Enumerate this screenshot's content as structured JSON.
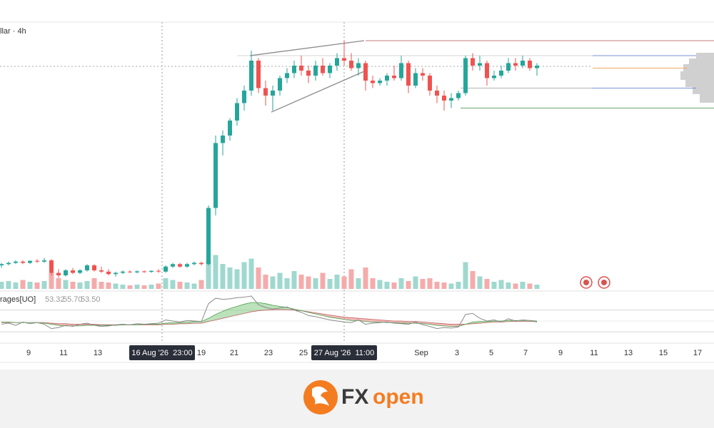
{
  "chart_data": {
    "type": "candlestick",
    "title": "llar · 4h",
    "xlim": [
      -0.2,
      99.8
    ],
    "ylim": [
      0,
      100
    ],
    "vlim": [
      0,
      100
    ],
    "colors": {
      "up": "#26a69a",
      "down": "#ef5350",
      "vol_up": "#9fd8cf",
      "vol_down": "#f5abab"
    },
    "candles": [
      [
        8,
        9,
        7,
        8.5
      ],
      [
        8.5,
        9.5,
        8,
        9
      ],
      [
        9,
        10,
        8.5,
        9.5
      ],
      [
        9.5,
        10,
        8.5,
        9
      ],
      [
        9,
        10,
        8.5,
        9.8
      ],
      [
        9.8,
        10.5,
        9,
        9.5
      ],
      [
        9.5,
        11,
        9,
        10
      ],
      [
        10,
        10.5,
        4,
        5
      ],
      [
        5,
        6.5,
        3,
        4
      ],
      [
        4,
        6.5,
        3.5,
        6
      ],
      [
        6,
        7,
        4.5,
        5
      ],
      [
        5,
        6.5,
        4.5,
        6
      ],
      [
        6,
        8.5,
        5.5,
        8
      ],
      [
        8,
        8.5,
        5.5,
        6
      ],
      [
        6,
        7.5,
        5,
        5.5
      ],
      [
        5.5,
        6.5,
        4,
        4.5
      ],
      [
        4.5,
        5.5,
        3.5,
        5
      ],
      [
        5,
        6,
        4.5,
        5.5
      ],
      [
        5.5,
        6,
        5,
        5.2
      ],
      [
        5.2,
        6,
        4.8,
        5.6
      ],
      [
        5.6,
        6,
        5,
        5.4
      ],
      [
        5.4,
        6,
        5,
        5.8
      ],
      [
        5.8,
        6.5,
        5,
        5.5
      ],
      [
        5.5,
        8,
        5,
        7.5
      ],
      [
        7.5,
        9,
        7,
        8.5
      ],
      [
        8.5,
        9,
        7,
        7.5
      ],
      [
        7.5,
        9,
        7,
        8.5
      ],
      [
        8.5,
        9.5,
        8,
        9
      ],
      [
        9,
        9.5,
        8,
        8.5
      ],
      [
        8.5,
        32,
        8,
        31
      ],
      [
        31,
        60,
        28,
        57
      ],
      [
        57,
        62,
        52,
        60
      ],
      [
        60,
        67,
        58,
        66
      ],
      [
        66,
        75,
        64,
        73
      ],
      [
        73,
        80,
        70,
        78
      ],
      [
        78,
        94,
        76,
        90
      ],
      [
        90,
        91,
        77,
        79
      ],
      [
        79,
        82,
        72,
        76
      ],
      [
        76,
        80,
        70,
        78
      ],
      [
        78,
        84,
        76,
        83
      ],
      [
        83,
        87,
        81,
        85
      ],
      [
        85,
        90,
        83,
        88
      ],
      [
        88,
        92,
        84,
        86
      ],
      [
        86,
        88,
        81,
        84
      ],
      [
        84,
        90,
        82,
        88
      ],
      [
        88,
        91,
        84,
        85
      ],
      [
        85,
        89,
        83,
        88
      ],
      [
        88,
        93,
        86,
        91
      ],
      [
        91,
        98,
        88,
        90
      ],
      [
        90,
        93,
        86,
        87
      ],
      [
        87,
        91,
        84,
        89
      ],
      [
        89,
        90,
        78,
        82
      ],
      [
        82,
        84,
        79,
        81
      ],
      [
        81,
        83,
        80,
        82
      ],
      [
        82,
        85,
        80,
        84
      ],
      [
        84,
        88,
        82,
        83
      ],
      [
        83,
        92,
        82,
        89
      ],
      [
        89,
        90,
        77,
        80
      ],
      [
        80,
        87,
        79,
        85
      ],
      [
        85,
        87,
        82,
        84
      ],
      [
        84,
        85,
        76,
        78
      ],
      [
        78,
        80,
        73,
        76
      ],
      [
        76,
        78,
        70,
        74
      ],
      [
        74,
        77,
        71,
        75
      ],
      [
        75,
        78,
        74,
        77
      ],
      [
        77,
        92,
        76,
        91
      ],
      [
        91,
        93,
        86,
        88
      ],
      [
        88,
        92,
        86,
        89
      ],
      [
        89,
        90,
        80,
        83
      ],
      [
        83,
        86,
        82,
        84
      ],
      [
        84,
        88,
        83,
        86
      ],
      [
        86,
        91,
        85,
        89
      ],
      [
        89,
        91,
        86,
        88
      ],
      [
        88,
        92,
        87,
        90
      ],
      [
        90,
        91,
        86,
        87
      ],
      [
        87,
        89,
        84,
        88
      ]
    ],
    "volume": [
      20,
      22,
      18,
      25,
      20,
      18,
      22,
      45,
      30,
      25,
      20,
      18,
      22,
      30,
      20,
      18,
      15,
      12,
      10,
      12,
      10,
      12,
      15,
      30,
      25,
      20,
      18,
      15,
      25,
      80,
      95,
      70,
      60,
      55,
      75,
      85,
      60,
      40,
      35,
      45,
      30,
      50,
      40,
      35,
      30,
      45,
      28,
      40,
      35,
      55,
      30,
      60,
      30,
      25,
      20,
      18,
      30,
      22,
      35,
      28,
      30,
      20,
      18,
      15,
      20,
      75,
      50,
      35,
      28,
      20,
      25,
      18,
      15,
      20,
      15,
      12
    ],
    "xticks": [
      {
        "value": 3.8,
        "label": "9"
      },
      {
        "value": 8.7,
        "label": "11"
      },
      {
        "value": 13.5,
        "label": "13"
      },
      {
        "value": 28,
        "label": "19"
      },
      {
        "value": 32.6,
        "label": "21"
      },
      {
        "value": 37.4,
        "label": "23"
      },
      {
        "value": 42.3,
        "label": "25"
      },
      {
        "value": 58.8,
        "label": "Sep"
      },
      {
        "value": 63.8,
        "label": "3"
      },
      {
        "value": 68.6,
        "label": "5"
      },
      {
        "value": 73.4,
        "label": "7"
      },
      {
        "value": 78.3,
        "label": "9"
      },
      {
        "value": 83,
        "label": "11"
      },
      {
        "value": 87.8,
        "label": "13"
      },
      {
        "value": 92.7,
        "label": "15"
      },
      {
        "value": 97.5,
        "label": "17"
      }
    ],
    "crosshairs": [
      {
        "value": 22.5,
        "label": "16 Aug '26  23:00"
      },
      {
        "value": 48,
        "label": "27 Aug '26  11:00"
      }
    ],
    "levels": [
      {
        "value": 98,
        "color": "#c77b7b",
        "from": 51,
        "to": 99.8
      },
      {
        "value": 92,
        "color": "#d5d5d5",
        "from": 33,
        "to": 82.8
      },
      {
        "value": 92,
        "color": "#7b93d6",
        "from": 82.8,
        "to": 97.3
      },
      {
        "value": 87.7,
        "color": "#aaaaaa",
        "from": -0.2,
        "to": 82.8,
        "dashed": true
      },
      {
        "value": 87,
        "color": "#f0a860",
        "from": 82.8,
        "to": 96
      },
      {
        "value": 79,
        "color": "#b5b5b5",
        "from": 64.3,
        "to": 82.8
      },
      {
        "value": 79,
        "color": "#7b93d6",
        "from": 82.8,
        "to": 97.3
      },
      {
        "value": 71,
        "color": "#6aa86a",
        "from": 64.3,
        "to": 99.8
      }
    ],
    "trendlines": [
      {
        "x": [
          34.8,
          50.8
        ],
        "y": [
          92,
          98
        ]
      },
      {
        "x": [
          37.8,
          50.8
        ],
        "y": [
          69.4,
          85.7
        ]
      }
    ],
    "indicator": {
      "name": "rages[UO]",
      "values": [
        53.32,
        55.7,
        53.5
      ],
      "value_labels": [
        "53.32",
        "55.70",
        "53.50"
      ],
      "ilim": [
        0,
        100
      ],
      "levels": [
        70,
        50,
        30
      ],
      "uo": [
        44,
        46,
        42,
        48,
        45,
        47,
        44,
        36,
        38,
        42,
        40,
        44,
        46,
        42,
        40,
        41,
        43,
        44,
        43,
        45,
        44,
        45,
        46,
        52,
        50,
        48,
        51,
        50,
        49,
        82,
        92,
        90,
        91,
        93,
        94,
        96,
        80,
        75,
        72,
        74,
        76,
        70,
        66,
        60,
        58,
        55,
        52,
        50,
        48,
        47,
        52,
        44,
        46,
        47,
        48,
        46,
        45,
        44,
        48,
        43,
        40,
        36,
        38,
        37,
        39,
        62,
        64,
        55,
        50,
        52,
        48,
        54,
        50,
        52,
        51,
        48
      ],
      "fast": [
        48,
        48,
        47,
        47,
        47,
        47,
        46,
        44,
        42,
        41,
        41,
        41,
        42,
        42,
        42,
        42,
        42,
        43,
        43,
        43,
        44,
        44,
        44,
        46,
        47,
        47,
        48,
        49,
        49,
        55,
        62,
        68,
        73,
        77,
        81,
        84,
        84,
        82,
        79,
        77,
        75,
        72,
        69,
        66,
        63,
        60,
        57,
        55,
        53,
        51,
        51,
        49,
        48,
        48,
        47,
        47,
        46,
        46,
        46,
        45,
        44,
        42,
        41,
        40,
        40,
        44,
        48,
        49,
        49,
        50,
        50,
        51,
        51,
        51,
        51,
        50
      ],
      "slow": [
        47,
        47,
        47,
        47,
        47,
        47,
        47,
        46,
        45,
        45,
        44,
        44,
        44,
        44,
        43,
        43,
        43,
        43,
        43,
        43,
        43,
        43,
        43,
        44,
        44,
        45,
        45,
        46,
        46,
        49,
        52,
        55,
        58,
        61,
        64,
        67,
        69,
        70,
        71,
        71,
        71,
        70,
        69,
        67,
        65,
        63,
        61,
        59,
        57,
        56,
        55,
        54,
        53,
        52,
        51,
        50,
        50,
        49,
        49,
        48,
        47,
        46,
        45,
        44,
        44,
        44,
        45,
        46,
        47,
        48,
        48,
        49,
        49,
        49,
        49,
        49
      ]
    }
  },
  "logo": {
    "brand_a": "FX",
    "brand_b": "open"
  }
}
